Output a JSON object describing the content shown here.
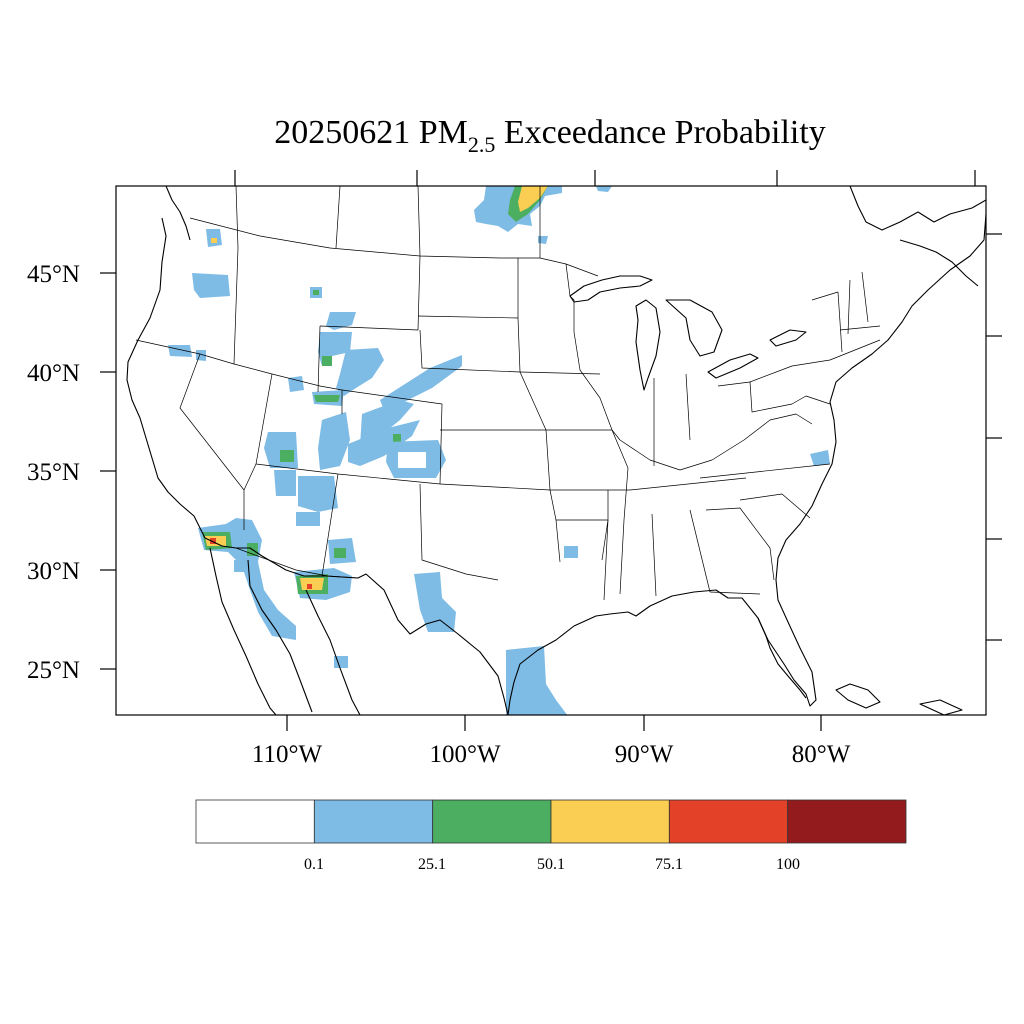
{
  "map": {
    "title_prefix": "20250621 PM",
    "title_subscript": "2.5",
    "title_suffix": " Exceedance Probability",
    "lat_labels": [
      "45°N",
      "40°N",
      "35°N",
      "30°N",
      "25°N"
    ],
    "lon_labels": [
      "110°W",
      "100°W",
      "90°W",
      "80°W"
    ],
    "region": "Contiguous United States",
    "legend": {
      "bins": [
        {
          "color": "#ffffff"
        },
        {
          "color": "#7ebbe5"
        },
        {
          "color": "#4bae60"
        },
        {
          "color": "#f9ce52"
        },
        {
          "color": "#e34128"
        },
        {
          "color": "#941b1d"
        }
      ],
      "tick_labels": [
        "0.1",
        "25.1",
        "50.1",
        "75.1",
        "100"
      ]
    }
  },
  "chart_data": {
    "type": "heatmap",
    "title": "20250621 PM2.5 Exceedance Probability",
    "levels": [
      0.1,
      25.1,
      50.1,
      75.1,
      100
    ],
    "colors": [
      "#ffffff",
      "#7ebbe5",
      "#4bae60",
      "#f9ce52",
      "#e34128",
      "#941b1d"
    ],
    "latitude_ticks": [
      45,
      40,
      35,
      30,
      25
    ],
    "longitude_ticks": [
      -110,
      -100,
      -90,
      -80
    ],
    "grid": false,
    "legend_placement": "bottom"
  }
}
